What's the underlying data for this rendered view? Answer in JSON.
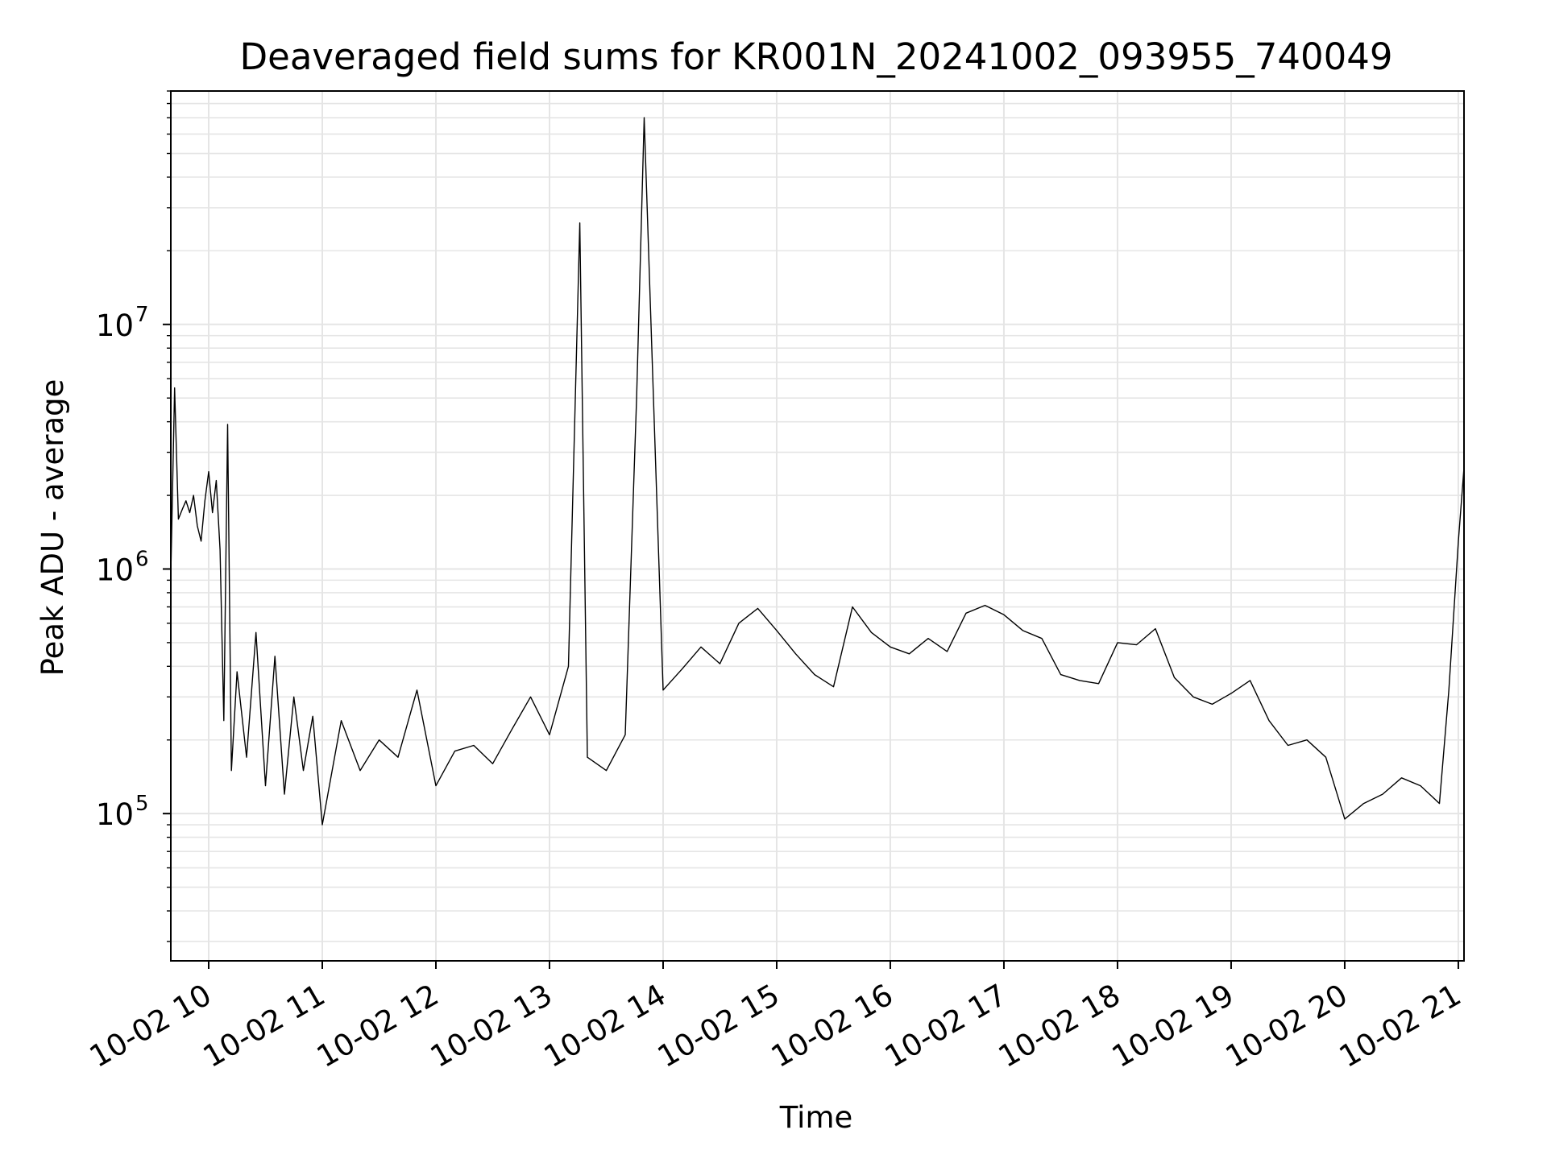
{
  "chart_data": {
    "type": "line",
    "title": "Deaveraged field sums for KR001N_20241002_093955_740049",
    "xlabel": "Time",
    "ylabel": "Peak ADU - average",
    "yscale": "log",
    "ylim": [
      25000,
      90000000
    ],
    "xlim": [
      "2024-10-02 09:40",
      "2024-10-02 21:03"
    ],
    "grid": true,
    "line_color": "#000000",
    "grid_color": "#e5e5e5",
    "x_tick_labels": [
      "10-02 10",
      "10-02 11",
      "10-02 12",
      "10-02 13",
      "10-02 14",
      "10-02 15",
      "10-02 16",
      "10-02 17",
      "10-02 18",
      "10-02 19",
      "10-02 20",
      "10-02 21"
    ],
    "y_tick_labels": [
      {
        "base": "10",
        "exp": "5",
        "value": 100000
      },
      {
        "base": "10",
        "exp": "6",
        "value": 1000000
      },
      {
        "base": "10",
        "exp": "7",
        "value": 10000000
      }
    ],
    "series": [
      {
        "x": [
          "2024-10-02 09:40",
          "2024-10-02 09:42",
          "2024-10-02 09:44",
          "2024-10-02 09:46",
          "2024-10-02 09:48",
          "2024-10-02 09:50",
          "2024-10-02 09:52",
          "2024-10-02 09:54",
          "2024-10-02 09:56",
          "2024-10-02 09:58",
          "2024-10-02 10:00",
          "2024-10-02 10:02",
          "2024-10-02 10:04",
          "2024-10-02 10:06",
          "2024-10-02 10:08",
          "2024-10-02 10:10",
          "2024-10-02 10:12",
          "2024-10-02 10:15",
          "2024-10-02 10:20",
          "2024-10-02 10:25",
          "2024-10-02 10:30",
          "2024-10-02 10:35",
          "2024-10-02 10:40",
          "2024-10-02 10:45",
          "2024-10-02 10:50",
          "2024-10-02 10:55",
          "2024-10-02 11:00",
          "2024-10-02 11:10",
          "2024-10-02 11:20",
          "2024-10-02 11:30",
          "2024-10-02 11:40",
          "2024-10-02 11:50",
          "2024-10-02 12:00",
          "2024-10-02 12:10",
          "2024-10-02 12:20",
          "2024-10-02 12:30",
          "2024-10-02 12:40",
          "2024-10-02 12:50",
          "2024-10-02 13:00",
          "2024-10-02 13:10",
          "2024-10-02 13:16",
          "2024-10-02 13:20",
          "2024-10-02 13:30",
          "2024-10-02 13:40",
          "2024-10-02 13:46",
          "2024-10-02 13:50",
          "2024-10-02 14:00",
          "2024-10-02 14:10",
          "2024-10-02 14:20",
          "2024-10-02 14:30",
          "2024-10-02 14:40",
          "2024-10-02 14:50",
          "2024-10-02 15:00",
          "2024-10-02 15:10",
          "2024-10-02 15:20",
          "2024-10-02 15:30",
          "2024-10-02 15:40",
          "2024-10-02 15:50",
          "2024-10-02 16:00",
          "2024-10-02 16:10",
          "2024-10-02 16:20",
          "2024-10-02 16:30",
          "2024-10-02 16:40",
          "2024-10-02 16:50",
          "2024-10-02 17:00",
          "2024-10-02 17:10",
          "2024-10-02 17:20",
          "2024-10-02 17:30",
          "2024-10-02 17:40",
          "2024-10-02 17:50",
          "2024-10-02 18:00",
          "2024-10-02 18:10",
          "2024-10-02 18:20",
          "2024-10-02 18:30",
          "2024-10-02 18:40",
          "2024-10-02 18:50",
          "2024-10-02 19:00",
          "2024-10-02 19:10",
          "2024-10-02 19:20",
          "2024-10-02 19:30",
          "2024-10-02 19:40",
          "2024-10-02 19:50",
          "2024-10-02 20:00",
          "2024-10-02 20:10",
          "2024-10-02 20:20",
          "2024-10-02 20:30",
          "2024-10-02 20:40",
          "2024-10-02 20:50",
          "2024-10-02 20:55",
          "2024-10-02 21:00",
          "2024-10-02 21:03"
        ],
        "y": [
          950000,
          5500000,
          1600000,
          1750000,
          1900000,
          1700000,
          2000000,
          1500000,
          1300000,
          1900000,
          2500000,
          1700000,
          2300000,
          1200000,
          240000,
          3900000,
          150000,
          380000,
          170000,
          550000,
          130000,
          440000,
          120000,
          300000,
          150000,
          250000,
          90000,
          240000,
          150000,
          200000,
          170000,
          320000,
          130000,
          180000,
          190000,
          160000,
          220000,
          300000,
          210000,
          400000,
          26000000,
          170000,
          150000,
          210000,
          5000000,
          70000000,
          320000,
          390000,
          480000,
          410000,
          600000,
          690000,
          560000,
          450000,
          370000,
          330000,
          700000,
          550000,
          480000,
          450000,
          520000,
          460000,
          660000,
          710000,
          650000,
          560000,
          520000,
          370000,
          350000,
          340000,
          500000,
          490000,
          570000,
          360000,
          300000,
          280000,
          310000,
          350000,
          240000,
          190000,
          200000,
          170000,
          95000,
          110000,
          120000,
          140000,
          130000,
          110000,
          320000,
          1300000,
          2600000
        ]
      }
    ]
  }
}
